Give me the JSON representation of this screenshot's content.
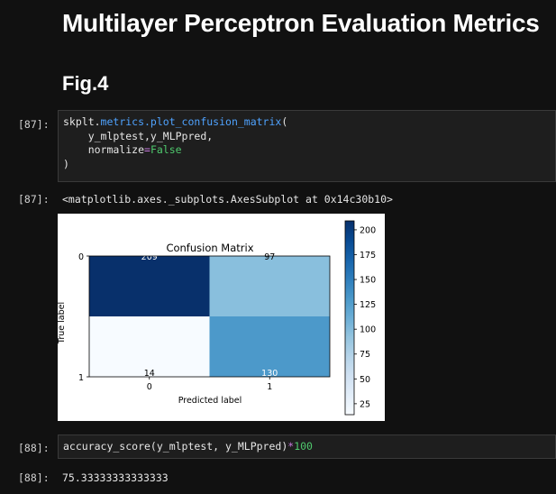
{
  "heading": "Multilayer Perceptron Evaluation Metrics",
  "subheading": "Fig.4",
  "cells": [
    {
      "prompt": "[87]:",
      "code": {
        "line1_module": "skplt.",
        "line1_attr": "metrics.plot_confusion_matrix",
        "line1_paren": "(",
        "line2": "    y_mlptest,y_MLPpred,",
        "line3_key": "    normalize",
        "line3_eq": "=",
        "line3_val": "False",
        "line4": ")"
      },
      "output_prompt": "[87]:",
      "output_text": "<matplotlib.axes._subplots.AxesSubplot at 0x14c30b10>"
    },
    {
      "prompt": "[88]:",
      "code": {
        "text": "accuracy_score(y_mlptest, y_MLPpred)",
        "op": "*",
        "num": "100"
      },
      "output_prompt": "[88]:",
      "output_text": "75.33333333333333"
    }
  ],
  "chart_data": {
    "type": "heatmap",
    "title": "Confusion Matrix",
    "xlabel": "Predicted label",
    "ylabel": "True label",
    "x_ticks": [
      "0",
      "1"
    ],
    "y_ticks": [
      "0",
      "1"
    ],
    "matrix": [
      [
        209,
        97
      ],
      [
        14,
        130
      ]
    ],
    "colormap": "Blues",
    "colorbar_range": [
      14,
      209
    ],
    "colorbar_ticks": [
      25,
      50,
      75,
      100,
      125,
      150,
      175,
      200
    ]
  },
  "colors": {
    "background": "#111111",
    "cell_bg": "#1e1e1e",
    "attr": "#4fa3ff",
    "bool": "#4fc86d",
    "operator": "#c678dd"
  }
}
